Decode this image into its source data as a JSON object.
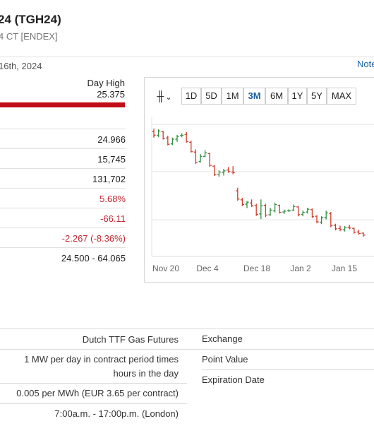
{
  "header": {
    "title": "24 (TGH24)",
    "subtitle": "4 CT [ENDEX]",
    "date": "16th, 2024",
    "notes_link": "Note"
  },
  "price_range": {
    "day_high_label": "Day High",
    "day_high_value": "25.375"
  },
  "stats": [
    {
      "value": "24.966",
      "negative": false
    },
    {
      "value": "15,745",
      "negative": false
    },
    {
      "value": "131,702",
      "negative": false
    },
    {
      "value": "5.68%",
      "negative": true
    },
    {
      "value": "-66.11",
      "negative": true
    },
    {
      "value": "-2.267 (-8.36%)",
      "negative": true
    },
    {
      "value": "24.500 - 64.065",
      "negative": false
    }
  ],
  "chart_toolbar": {
    "chart_type_icon": "ohlc-bars-icon",
    "ranges": [
      "1D",
      "5D",
      "1M",
      "3M",
      "6M",
      "1Y",
      "5Y",
      "MAX"
    ],
    "active_range": "3M"
  },
  "chart_data": {
    "type": "ohlc",
    "x_tick_labels": [
      "Nov 20",
      "Dec 4",
      "Dec 18",
      "Jan 2",
      "Jan 15"
    ],
    "y_tick_labels": [],
    "grid": true,
    "up_color": "#2f8f3f",
    "down_color": "#d23a2a",
    "bars": [
      {
        "o": 46.8,
        "h": 47.6,
        "l": 45.3,
        "c": 45.9
      },
      {
        "o": 45.9,
        "h": 47.4,
        "l": 45.4,
        "c": 47.0
      },
      {
        "o": 46.8,
        "h": 47.0,
        "l": 44.8,
        "c": 45.1
      },
      {
        "o": 45.2,
        "h": 45.8,
        "l": 43.3,
        "c": 43.6
      },
      {
        "o": 43.7,
        "h": 45.3,
        "l": 43.4,
        "c": 44.9
      },
      {
        "o": 44.9,
        "h": 46.0,
        "l": 44.2,
        "c": 45.6
      },
      {
        "o": 45.8,
        "h": 46.4,
        "l": 45.4,
        "c": 45.9
      },
      {
        "o": 46.1,
        "h": 46.7,
        "l": 44.0,
        "c": 44.3
      },
      {
        "o": 44.1,
        "h": 44.5,
        "l": 41.5,
        "c": 41.7
      },
      {
        "o": 41.6,
        "h": 42.3,
        "l": 38.6,
        "c": 39.0
      },
      {
        "o": 39.2,
        "h": 41.1,
        "l": 38.9,
        "c": 40.5
      },
      {
        "o": 40.5,
        "h": 42.1,
        "l": 40.3,
        "c": 41.4
      },
      {
        "o": 41.2,
        "h": 41.4,
        "l": 37.8,
        "c": 38.2
      },
      {
        "o": 38.0,
        "h": 38.3,
        "l": 35.5,
        "c": 35.8
      },
      {
        "o": 35.8,
        "h": 36.9,
        "l": 35.3,
        "c": 36.5
      },
      {
        "o": 36.4,
        "h": 37.3,
        "l": 35.6,
        "c": 36.8
      },
      {
        "o": 37.0,
        "h": 37.8,
        "l": 36.3,
        "c": 36.6
      },
      {
        "o": 36.5,
        "h": 38.0,
        "l": 35.9,
        "c": 36.4
      },
      {
        "o": 31.7,
        "h": 32.5,
        "l": 29.2,
        "c": 29.6
      },
      {
        "o": 29.4,
        "h": 29.9,
        "l": 27.8,
        "c": 28.2
      },
      {
        "o": 28.3,
        "h": 29.1,
        "l": 27.3,
        "c": 28.8
      },
      {
        "o": 28.6,
        "h": 29.5,
        "l": 27.6,
        "c": 27.9
      },
      {
        "o": 27.9,
        "h": 28.4,
        "l": 25.3,
        "c": 25.7
      },
      {
        "o": 25.8,
        "h": 29.5,
        "l": 24.5,
        "c": 27.9
      },
      {
        "o": 28.0,
        "h": 28.4,
        "l": 25.0,
        "c": 25.5
      },
      {
        "o": 25.6,
        "h": 27.4,
        "l": 25.3,
        "c": 26.8
      },
      {
        "o": 26.6,
        "h": 28.7,
        "l": 26.2,
        "c": 28.2
      },
      {
        "o": 28.0,
        "h": 28.2,
        "l": 25.9,
        "c": 26.2
      },
      {
        "o": 26.3,
        "h": 26.9,
        "l": 25.8,
        "c": 26.5
      },
      {
        "o": 26.6,
        "h": 27.0,
        "l": 26.3,
        "c": 26.6
      },
      {
        "o": 26.8,
        "h": 28.2,
        "l": 26.5,
        "c": 27.7
      },
      {
        "o": 27.6,
        "h": 27.8,
        "l": 25.2,
        "c": 25.6
      },
      {
        "o": 25.7,
        "h": 26.7,
        "l": 25.2,
        "c": 26.2
      },
      {
        "o": 26.3,
        "h": 27.4,
        "l": 25.9,
        "c": 27.0
      },
      {
        "o": 26.9,
        "h": 27.2,
        "l": 24.8,
        "c": 25.1
      },
      {
        "o": 25.2,
        "h": 25.5,
        "l": 23.4,
        "c": 23.8
      },
      {
        "o": 23.7,
        "h": 25.2,
        "l": 23.2,
        "c": 24.9
      },
      {
        "o": 24.9,
        "h": 26.6,
        "l": 24.4,
        "c": 26.1
      },
      {
        "o": 25.9,
        "h": 26.3,
        "l": 22.4,
        "c": 22.8
      },
      {
        "o": 22.9,
        "h": 23.3,
        "l": 21.6,
        "c": 22.0
      },
      {
        "o": 22.1,
        "h": 22.8,
        "l": 21.4,
        "c": 21.8
      },
      {
        "o": 21.8,
        "h": 22.7,
        "l": 21.3,
        "c": 22.4
      },
      {
        "o": 22.4,
        "h": 23.0,
        "l": 21.9,
        "c": 22.2
      },
      {
        "o": 22.1,
        "h": 22.3,
        "l": 20.8,
        "c": 21.1
      },
      {
        "o": 21.2,
        "h": 21.8,
        "l": 20.5,
        "c": 20.8
      },
      {
        "o": 20.9,
        "h": 21.1,
        "l": 20.0,
        "c": 20.4
      }
    ]
  },
  "contract_specs": {
    "left_values": [
      "Dutch TTF Gas Futures",
      "1 MW per day in contract period times",
      "hours in the day",
      "0.005 per MWh (EUR 3.65 per contract)",
      "7:00a.m. - 17:00p.m. (London)"
    ],
    "right_labels": [
      "Exchange",
      "Point Value",
      "Expiration Date"
    ]
  }
}
